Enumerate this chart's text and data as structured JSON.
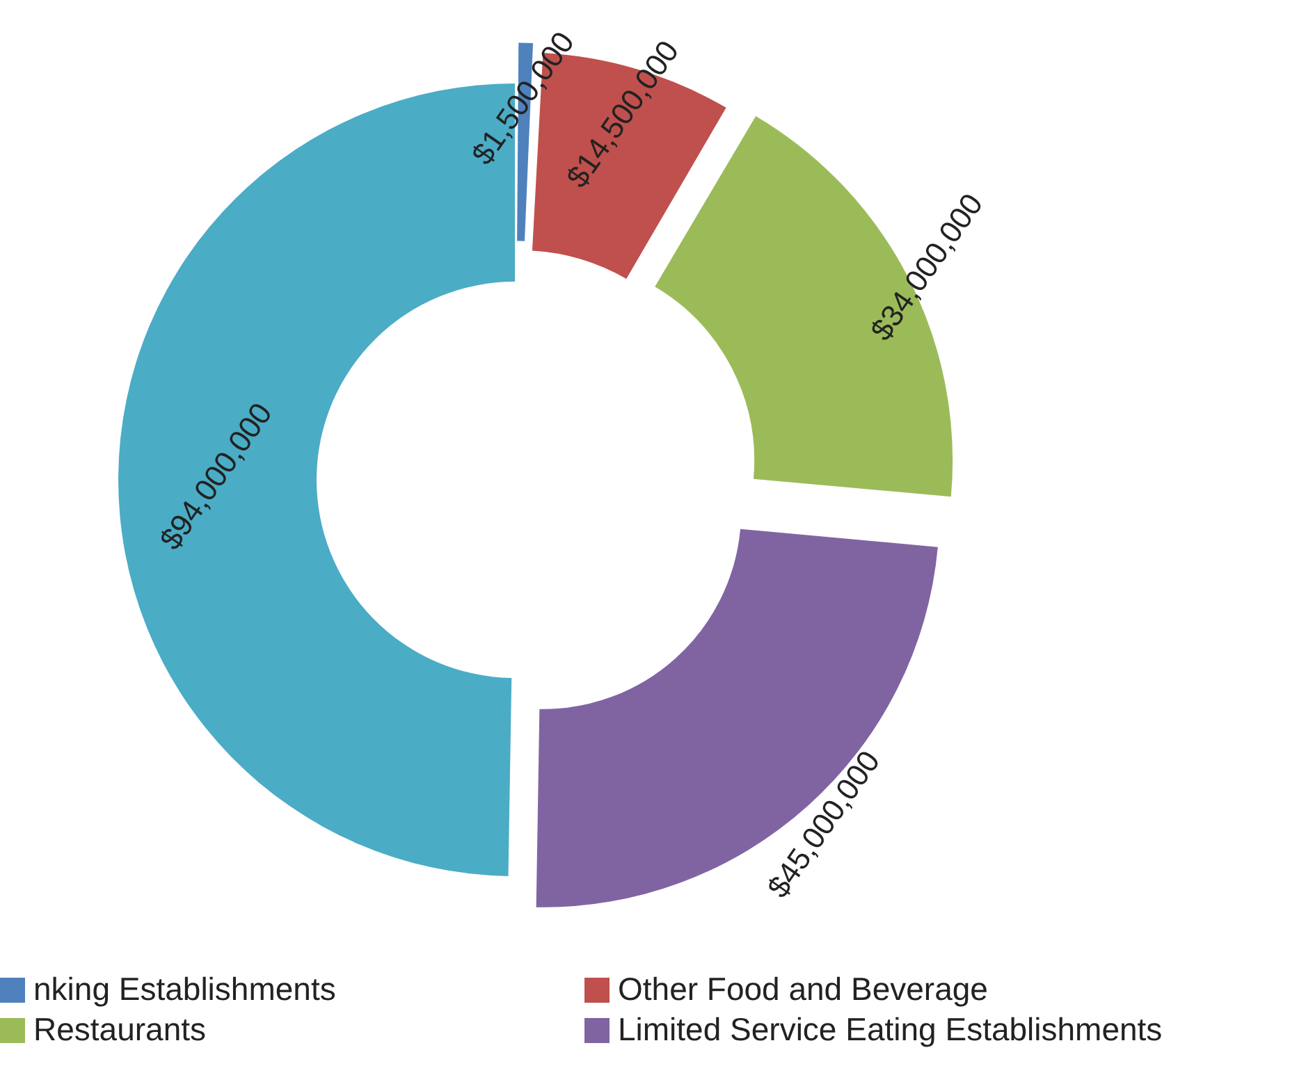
{
  "chart_data": {
    "type": "donut",
    "categories": [
      "nking Establishments",
      "Other Food and Beverage",
      "Restaurants",
      "Limited Service Eating Establishments",
      null
    ],
    "values": [
      1500000,
      14500000,
      34000000,
      45000000,
      94000000
    ],
    "colors": [
      "#4f81bd",
      "#c0504d",
      "#9bbb59",
      "#8064a2",
      "#4bacc6"
    ],
    "value_labels": [
      "$1,500,000",
      "$14,500,000",
      "$34,000,000",
      "$45,000,000",
      "$94,000,000"
    ],
    "legend": "bottom"
  }
}
